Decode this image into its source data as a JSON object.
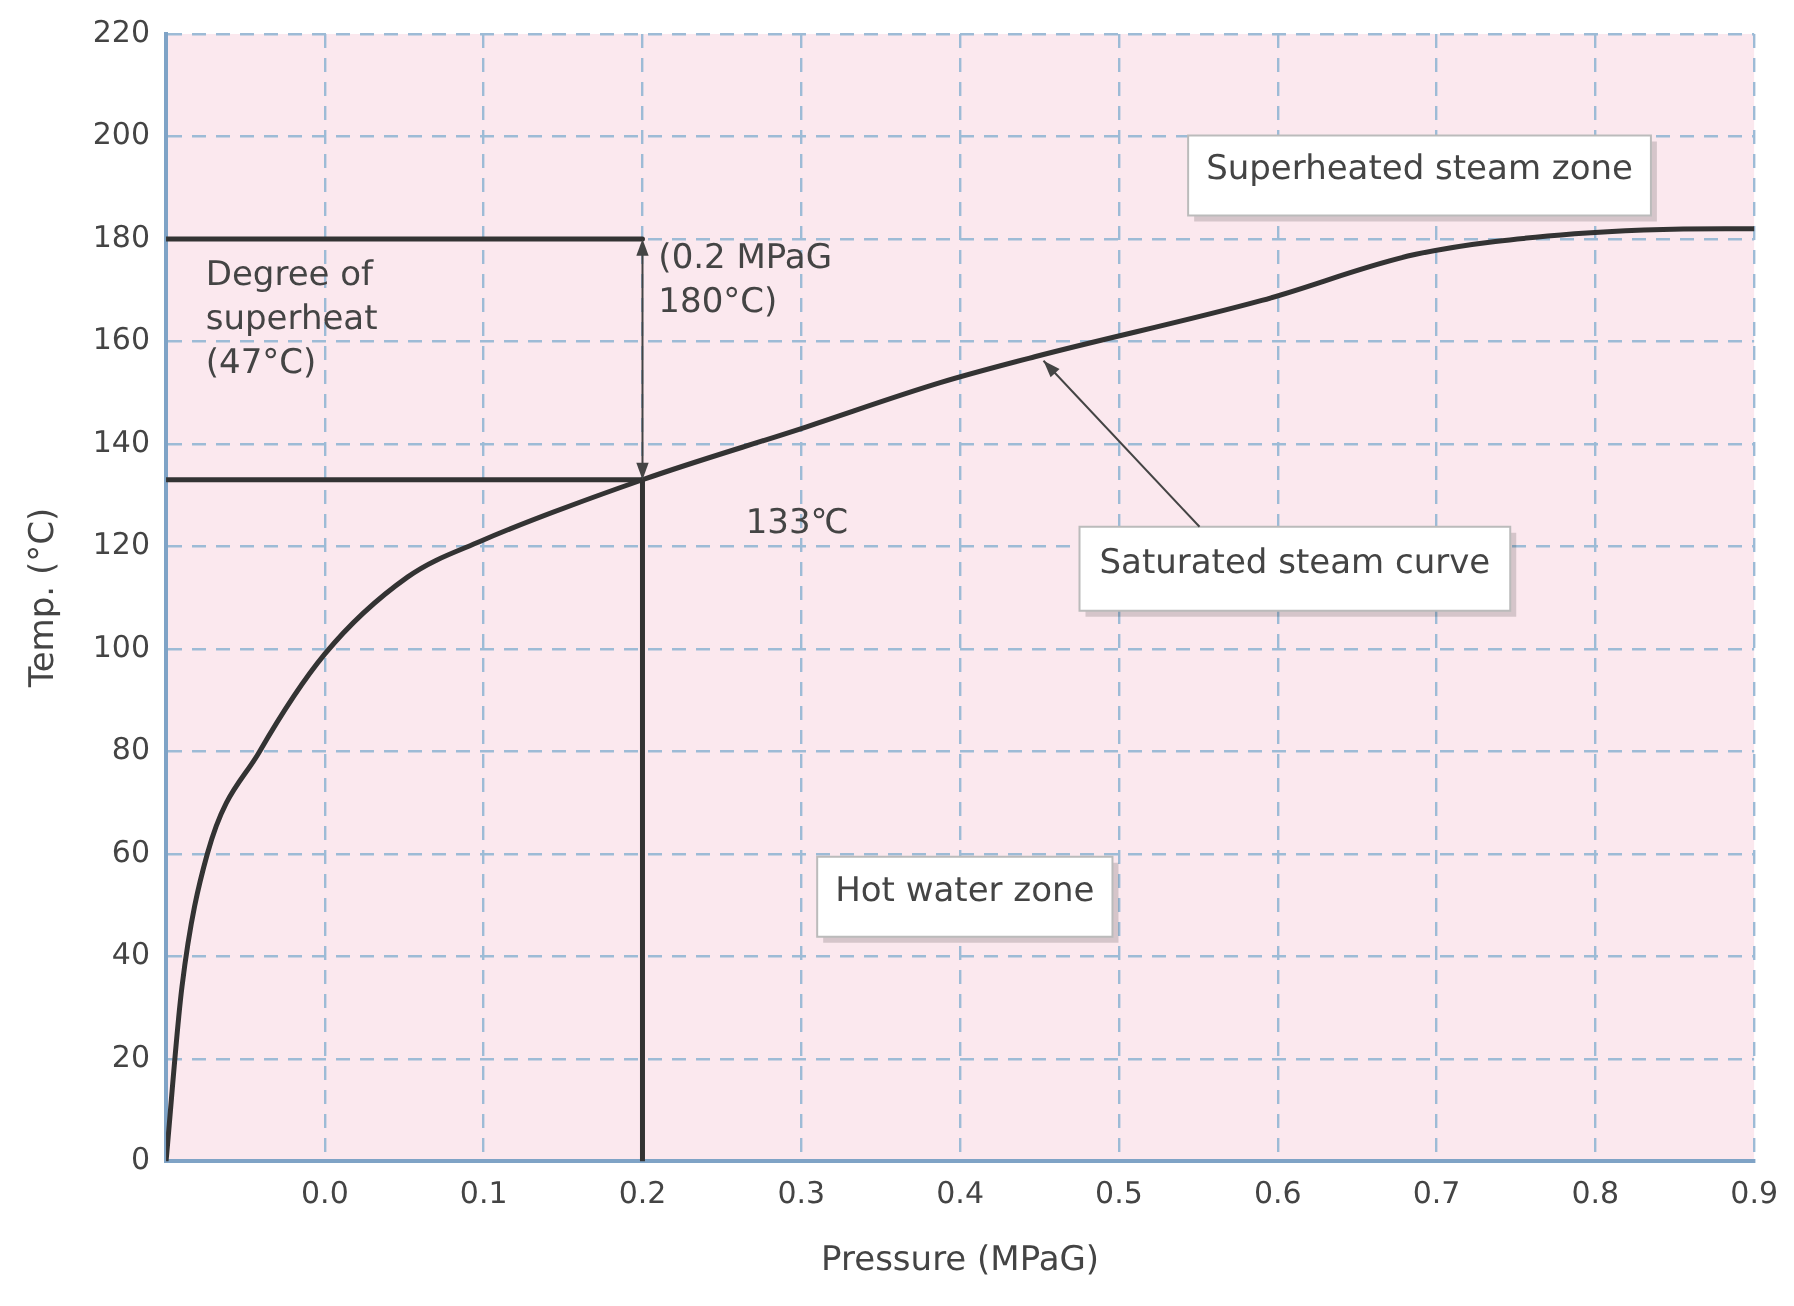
{
  "chart_data": {
    "type": "line",
    "xlabel": "Pressure (MPaG)",
    "ylabel": "Temp. (°C)",
    "xlim": [
      -0.1,
      0.9
    ],
    "ylim": [
      0,
      220
    ],
    "xticks": [
      {
        "value": -0.1,
        "label": null
      },
      {
        "value": 0,
        "label": "0.0"
      },
      {
        "value": 0.1,
        "label": "0.1"
      },
      {
        "value": 0.2,
        "label": "0.2"
      },
      {
        "value": 0.3,
        "label": "0.3"
      },
      {
        "value": 0.4,
        "label": "0.4"
      },
      {
        "value": 0.5,
        "label": "0.5"
      },
      {
        "value": 0.6,
        "label": "0.6"
      },
      {
        "value": 0.7,
        "label": "0.7"
      },
      {
        "value": 0.8,
        "label": "0.8"
      },
      {
        "value": 0.9,
        "label": "0.9"
      }
    ],
    "yticks": [
      0,
      20,
      40,
      60,
      80,
      100,
      120,
      140,
      160,
      180,
      200,
      220
    ],
    "grid": true,
    "marker": "none",
    "series": [
      {
        "color": "#333333",
        "x": [
          -0.1,
          -0.09,
          -0.074,
          -0.041,
          0,
          0.052,
          0.098,
          0.2,
          0.3,
          0.388,
          0.447,
          0.59,
          0.687,
          0.787,
          0.882,
          0.9
        ],
        "values": [
          0,
          34,
          60,
          80,
          99,
          114,
          121,
          133,
          143,
          152,
          157,
          168,
          177,
          181,
          182,
          182
        ]
      },
      {
        "color": "#333333",
        "x": [
          -0.1,
          0.2
        ],
        "values": [
          180,
          180
        ]
      },
      {
        "color": "#333333",
        "x": [
          -0.1,
          0.2
        ],
        "values": [
          133,
          133
        ]
      },
      {
        "color": "#333333",
        "x": [
          0.2,
          0.2
        ],
        "values": [
          0,
          133
        ]
      }
    ],
    "annotations": [
      "Superheated steam zone",
      {
        "text": "Saturated steam curve",
        "x": 0.45,
        "y": 157
      },
      "Hot water zone",
      "Degree of superheat (47°C)",
      "(0.2 MPaG 180°C)",
      "133℃"
    ]
  }
}
